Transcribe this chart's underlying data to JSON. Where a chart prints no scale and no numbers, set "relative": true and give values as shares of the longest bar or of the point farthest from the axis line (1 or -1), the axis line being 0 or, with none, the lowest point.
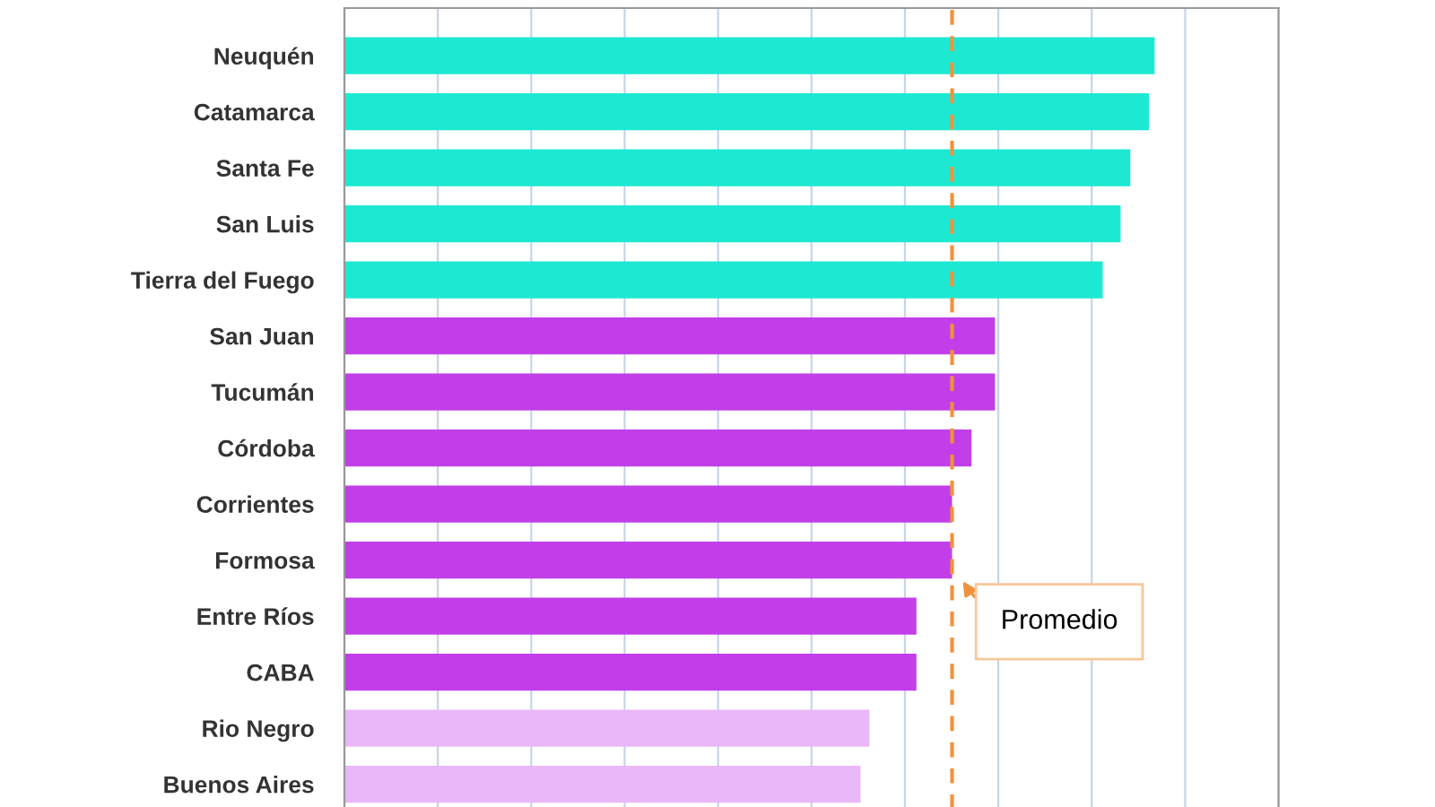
{
  "chart_data": {
    "type": "bar",
    "orientation": "horizontal",
    "relative": true,
    "grid": "x",
    "categories": [
      "Neuquén",
      "Catamarca",
      "Santa Fe",
      "San Luis",
      "Tierra del Fuego",
      "San Juan",
      "Tucumán",
      "Córdoba",
      "Corrientes",
      "Formosa",
      "Entre Ríos",
      "CABA",
      "Rio Negro",
      "Buenos Aires"
    ],
    "values": [
      1,
      0.993,
      0.97,
      0.958,
      0.936,
      0.803,
      0.803,
      0.774,
      0.75,
      0.75,
      0.706,
      0.706,
      0.648,
      0.637
    ],
    "colors": [
      "#1de9d3",
      "#1de9d3",
      "#1de9d3",
      "#1de9d3",
      "#1de9d3",
      "#c23ee8",
      "#c23ee8",
      "#c23ee8",
      "#c23ee8",
      "#c23ee8",
      "#c23ee8",
      "#c23ee8",
      "#e8b8f8",
      "#e8b8f8"
    ],
    "ref_lines": [
      {
        "axis": "x",
        "value": 0.75,
        "label": "Promedio",
        "color": "#f0923a",
        "line_style": "dashed"
      }
    ]
  }
}
